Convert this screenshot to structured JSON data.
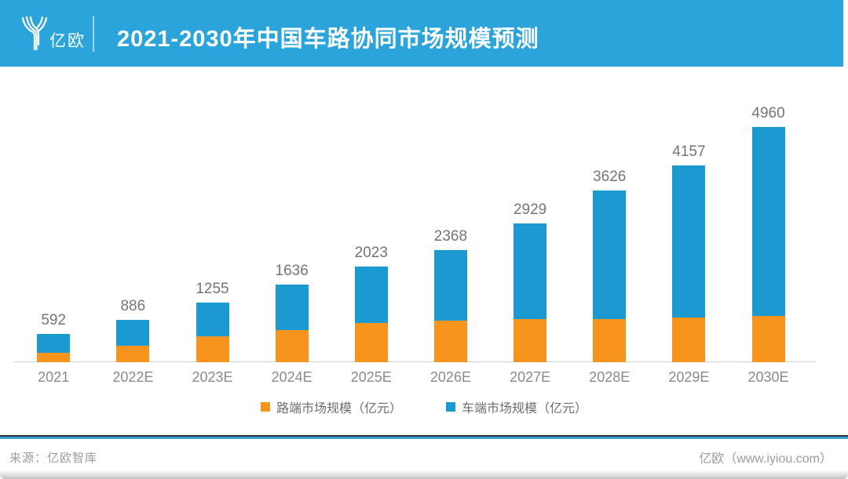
{
  "header": {
    "logo_text": "亿欧",
    "title": "2021-2030年中国车路协同市场规模预测"
  },
  "chart_data": {
    "type": "bar",
    "stacked": true,
    "title": "2021-2030年中国车路协同市场规模预测",
    "categories": [
      "2021",
      "2022E",
      "2023E",
      "2024E",
      "2025E",
      "2026E",
      "2027E",
      "2028E",
      "2029E",
      "2030E"
    ],
    "series": [
      {
        "name": "路端市场规模（亿元）",
        "color": "#F6941E",
        "values": [
          205,
          342,
          540,
          670,
          825,
          880,
          905,
          915,
          950,
          975
        ]
      },
      {
        "name": "车端市场规模（亿元）",
        "color": "#1B9AD2",
        "values": [
          387,
          544,
          715,
          966,
          1198,
          1488,
          2024,
          2711,
          3207,
          3985
        ]
      }
    ],
    "totals": [
      592,
      886,
      1255,
      1636,
      2023,
      2368,
      2929,
      3626,
      4157,
      4960
    ],
    "ylim": [
      0,
      4960
    ],
    "grid": false,
    "legend_position": "bottom",
    "value_labels": "totals shown above each bar"
  },
  "footer": {
    "source": "来源：亿欧智库",
    "brand": "亿欧（www.iyiou.com）"
  },
  "colors": {
    "banner_blue": "#2BA4DC",
    "bar_blue": "#1B9AD2",
    "bar_orange": "#F6941E",
    "axis_gray": "#D2D2D2",
    "label_gray": "#757575"
  }
}
